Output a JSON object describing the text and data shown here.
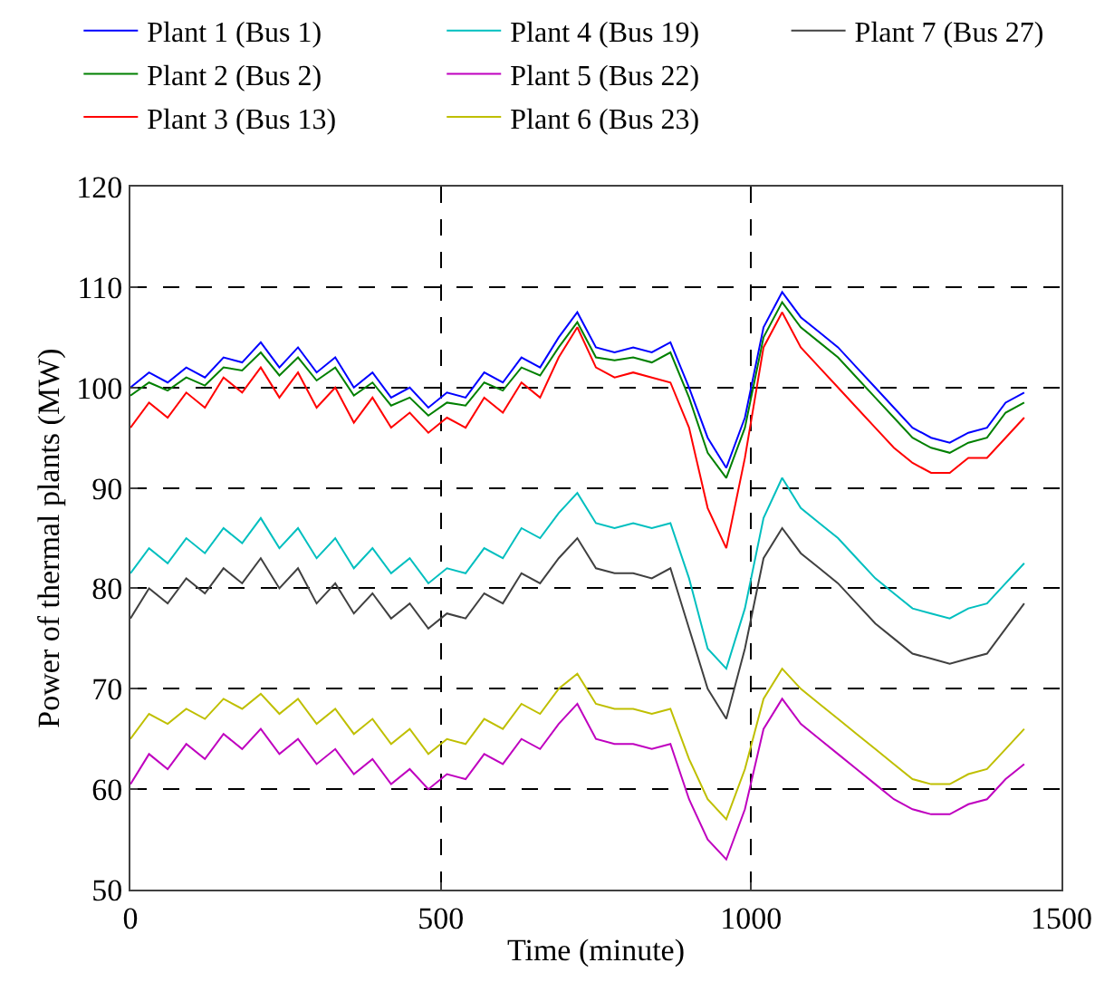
{
  "chart_data": {
    "type": "line",
    "xlabel": "Time (minute)",
    "ylabel": "Power of thermal plants (MW)",
    "x": [
      0,
      30,
      60,
      90,
      120,
      150,
      180,
      210,
      240,
      270,
      300,
      330,
      360,
      390,
      420,
      450,
      480,
      510,
      540,
      570,
      600,
      630,
      660,
      690,
      720,
      750,
      780,
      810,
      840,
      870,
      900,
      930,
      960,
      990,
      1020,
      1050,
      1080,
      1110,
      1140,
      1170,
      1200,
      1230,
      1260,
      1290,
      1320,
      1350,
      1380,
      1410,
      1440
    ],
    "series": [
      {
        "name": "Plant 1 (Bus 1)",
        "color": "#0000ff",
        "values": [
          100,
          101.5,
          100.5,
          102,
          101,
          103,
          102.5,
          104.5,
          102,
          104,
          101.5,
          103,
          100,
          101.5,
          99,
          100,
          98,
          99.5,
          99,
          101.5,
          100.5,
          103,
          102,
          105,
          107.5,
          104,
          103.5,
          104,
          103.5,
          104.5,
          100,
          95,
          92,
          97,
          106,
          109.5,
          107,
          105.5,
          104,
          102,
          100,
          98,
          96,
          95,
          94.5,
          95.5,
          96,
          98.5,
          99.5
        ]
      },
      {
        "name": "Plant 2 (Bus 2)",
        "color": "#008000",
        "values": [
          99.2,
          100.5,
          99.7,
          101,
          100.2,
          102,
          101.7,
          103.5,
          101.2,
          103,
          100.7,
          102,
          99.2,
          100.5,
          98.2,
          99,
          97.2,
          98.5,
          98.2,
          100.5,
          99.7,
          102,
          101.2,
          104,
          106.5,
          103,
          102.7,
          103,
          102.5,
          103.5,
          99,
          93.5,
          91,
          96,
          105,
          108.5,
          106,
          104.5,
          103,
          101,
          99,
          97,
          95,
          94,
          93.5,
          94.5,
          95,
          97.5,
          98.5
        ]
      },
      {
        "name": "Plant 3 (Bus 13)",
        "color": "#ff0000",
        "values": [
          96,
          98.5,
          97,
          99.5,
          98,
          101,
          99.5,
          102,
          99,
          101.5,
          98,
          100,
          96.5,
          99,
          96,
          97.5,
          95.5,
          97,
          96,
          99,
          97.5,
          100.5,
          99,
          103,
          106,
          102,
          101,
          101.5,
          101,
          100.5,
          96,
          88,
          84,
          93,
          104,
          107.5,
          104,
          102,
          100,
          98,
          96,
          94,
          92.5,
          91.5,
          91.5,
          93,
          93,
          95,
          97
        ]
      },
      {
        "name": "Plant 4 (Bus 19)",
        "color": "#00bfbf",
        "values": [
          81.5,
          84,
          82.5,
          85,
          83.5,
          86,
          84.5,
          87,
          84,
          86,
          83,
          85,
          82,
          84,
          81.5,
          83,
          80.5,
          82,
          81.5,
          84,
          83,
          86,
          85,
          87.5,
          89.5,
          86.5,
          86,
          86.5,
          86,
          86.5,
          81,
          74,
          72,
          78,
          87,
          91,
          88,
          86.5,
          85,
          83,
          81,
          79.5,
          78,
          77.5,
          77,
          78,
          78.5,
          80.5,
          82.5
        ]
      },
      {
        "name": "Plant 5 (Bus 22)",
        "color": "#bf00bf",
        "values": [
          60.5,
          63.5,
          62,
          64.5,
          63,
          65.5,
          64,
          66,
          63.5,
          65,
          62.5,
          64,
          61.5,
          63,
          60.5,
          62,
          60,
          61.5,
          61,
          63.5,
          62.5,
          65,
          64,
          66.5,
          68.5,
          65,
          64.5,
          64.5,
          64,
          64.5,
          59,
          55,
          53,
          58,
          66,
          69,
          66.5,
          65,
          63.5,
          62,
          60.5,
          59,
          58,
          57.5,
          57.5,
          58.5,
          59,
          61,
          62.5
        ]
      },
      {
        "name": "Plant 6 (Bus 23)",
        "color": "#bfbf00",
        "values": [
          65,
          67.5,
          66.5,
          68,
          67,
          69,
          68,
          69.5,
          67.5,
          69,
          66.5,
          68,
          65.5,
          67,
          64.5,
          66,
          63.5,
          65,
          64.5,
          67,
          66,
          68.5,
          67.5,
          70,
          71.5,
          68.5,
          68,
          68,
          67.5,
          68,
          63,
          59,
          57,
          62,
          69,
          72,
          70,
          68.5,
          67,
          65.5,
          64,
          62.5,
          61,
          60.5,
          60.5,
          61.5,
          62,
          64,
          66
        ]
      },
      {
        "name": "Plant 7 (Bus 27)",
        "color": "#404040",
        "values": [
          77,
          80,
          78.5,
          81,
          79.5,
          82,
          80.5,
          83,
          80,
          82,
          78.5,
          80.5,
          77.5,
          79.5,
          77,
          78.5,
          76,
          77.5,
          77,
          79.5,
          78.5,
          81.5,
          80.5,
          83,
          85,
          82,
          81.5,
          81.5,
          81,
          82,
          76,
          70,
          67,
          74,
          83,
          86,
          83.5,
          82,
          80.5,
          78.5,
          76.5,
          75,
          73.5,
          73,
          72.5,
          73,
          73.5,
          76,
          78.5
        ]
      }
    ],
    "xlim": [
      0,
      1500
    ],
    "xticks": [
      0,
      500,
      1000,
      1500
    ],
    "ylim": [
      50,
      120
    ],
    "yticks": [
      50,
      60,
      70,
      80,
      90,
      100,
      110,
      120
    ],
    "grid": true,
    "legend": "top",
    "marker": "none",
    "line_style": "solid"
  }
}
